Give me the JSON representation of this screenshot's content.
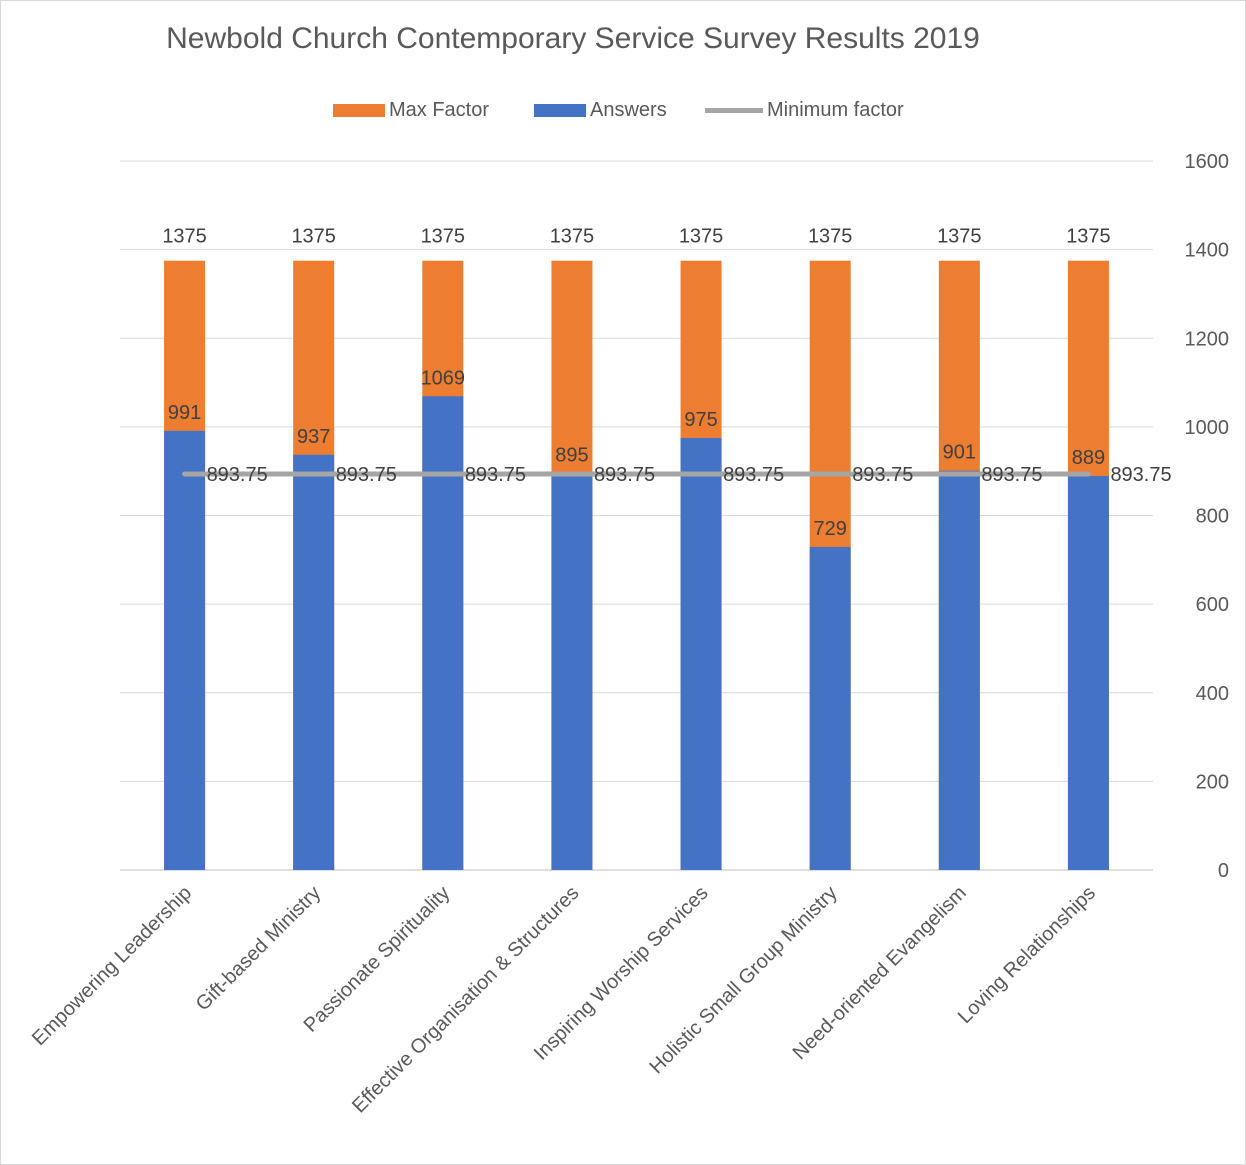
{
  "chart_data": {
    "type": "bar",
    "title": "Newbold Church Contemporary Service Survey Results 2019",
    "categories": [
      "Empowering Leadership",
      "Gift-based Ministry",
      "Passionate Spirituality",
      "Effective Organisation & Structures",
      "Inspiring Worship Services",
      "Holistic Small Group Ministry",
      "Need-oriented Evangelism",
      "Loving Relationships"
    ],
    "series": [
      {
        "name": "Max Factor",
        "kind": "bar",
        "color": "#ED7D31",
        "values": [
          1375,
          1375,
          1375,
          1375,
          1375,
          1375,
          1375,
          1375
        ]
      },
      {
        "name": "Answers",
        "kind": "bar",
        "color": "#4472C4",
        "values": [
          991,
          937,
          1069,
          895,
          975,
          729,
          901,
          889
        ]
      },
      {
        "name": "Minimum factor",
        "kind": "line",
        "color": "#A5A5A5",
        "values": [
          893.75,
          893.75,
          893.75,
          893.75,
          893.75,
          893.75,
          893.75,
          893.75
        ]
      }
    ],
    "overlap": "Answers drawn in front of Max Factor",
    "ylim": [
      0,
      1600
    ],
    "yticks": [
      "0",
      "200",
      "400",
      "600",
      "800",
      "1000",
      "1200",
      "1400",
      "1600"
    ],
    "y_axis_position": "right",
    "grid": true,
    "legend": "top",
    "data_labels": true
  }
}
